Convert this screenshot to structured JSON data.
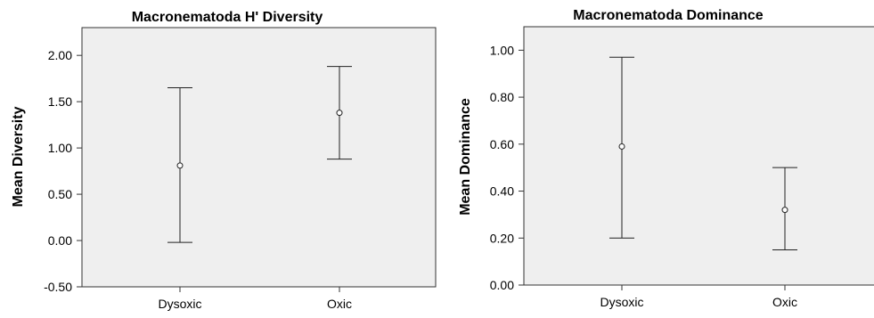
{
  "chart_data": [
    {
      "type": "errorbar",
      "title": "Macronematoda H' Diversity",
      "xlabel": "",
      "ylabel": "Mean Diversity",
      "categories": [
        "Dysoxic",
        "Oxic"
      ],
      "series": [
        {
          "means": [
            0.81,
            1.38
          ],
          "lower": [
            -0.02,
            0.88
          ],
          "upper": [
            1.65,
            1.88
          ]
        }
      ],
      "ylim": [
        -0.5,
        2.3
      ],
      "yticks": [
        -0.5,
        0.0,
        0.5,
        1.0,
        1.5,
        2.0
      ],
      "ytick_labels": [
        "-0.50",
        "0.00",
        "0.50",
        "1.00",
        "1.50",
        "2.00"
      ],
      "grid": false,
      "background": "#efefef"
    },
    {
      "type": "errorbar",
      "title": "Macronematoda Dominance",
      "xlabel": "",
      "ylabel": "Mean Dominance",
      "categories": [
        "Dysoxic",
        "Oxic"
      ],
      "series": [
        {
          "means": [
            0.59,
            0.32
          ],
          "lower": [
            0.2,
            0.15
          ],
          "upper": [
            0.97,
            0.5
          ]
        }
      ],
      "ylim": [
        0.0,
        1.1
      ],
      "yticks": [
        0.0,
        0.2,
        0.4,
        0.6,
        0.8,
        1.0
      ],
      "ytick_labels": [
        "0.00",
        "0.20",
        "0.40",
        "0.60",
        "0.80",
        "1.00"
      ],
      "grid": false,
      "background": "#efefef"
    }
  ]
}
